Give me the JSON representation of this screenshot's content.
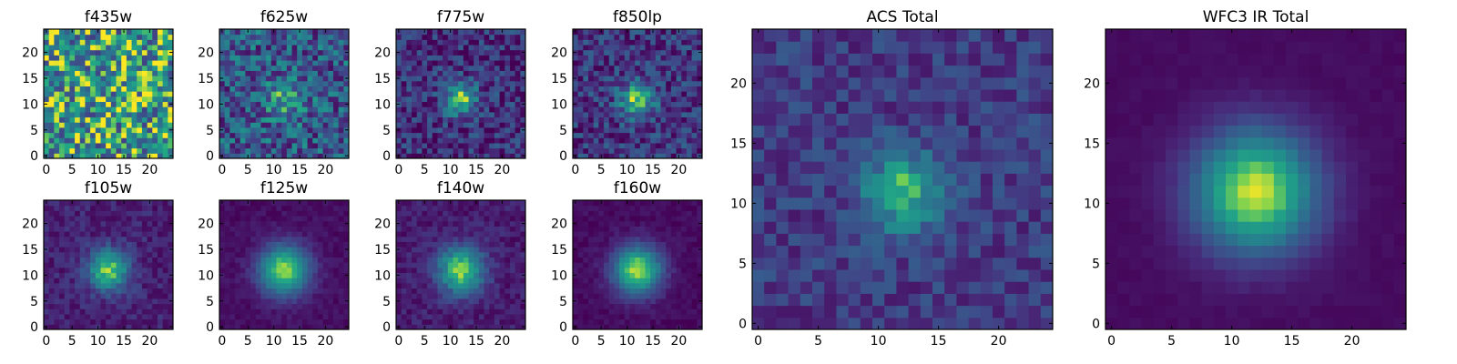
{
  "chart_data": [
    {
      "type": "heatmap",
      "title": "f435w",
      "grid_size": 25,
      "source": 0,
      "peak": [
        12,
        11
      ],
      "width": 3.0,
      "noise": 0.42,
      "floor": 0.55,
      "seed": 11,
      "xticks": [
        "0",
        "5",
        "10",
        "15",
        "20"
      ],
      "yticks": [
        "0",
        "5",
        "10",
        "15",
        "20"
      ],
      "xlim": [
        -0.5,
        24.5
      ],
      "ylim": [
        -0.5,
        24.5
      ],
      "colormap": "viridis"
    },
    {
      "type": "heatmap",
      "title": "f625w",
      "grid_size": 25,
      "source": 0.55,
      "peak": [
        12,
        11
      ],
      "width": 2.6,
      "noise": 0.3,
      "floor": 0.35,
      "seed": 23,
      "xticks": [
        "0",
        "5",
        "10",
        "15",
        "20"
      ],
      "yticks": [
        "0",
        "5",
        "10",
        "15",
        "20"
      ],
      "xlim": [
        -0.5,
        24.5
      ],
      "ylim": [
        -0.5,
        24.5
      ],
      "colormap": "viridis"
    },
    {
      "type": "heatmap",
      "title": "f775w",
      "grid_size": 25,
      "source": 0.8,
      "peak": [
        12,
        11
      ],
      "width": 2.2,
      "noise": 0.22,
      "floor": 0.18,
      "seed": 37,
      "xticks": [
        "0",
        "5",
        "10",
        "15",
        "20"
      ],
      "yticks": [
        "0",
        "5",
        "10",
        "15",
        "20"
      ],
      "xlim": [
        -0.5,
        24.5
      ],
      "ylim": [
        -0.5,
        24.5
      ],
      "colormap": "viridis"
    },
    {
      "type": "heatmap",
      "title": "f850lp",
      "grid_size": 25,
      "source": 0.78,
      "peak": [
        12,
        11
      ],
      "width": 2.4,
      "noise": 0.22,
      "floor": 0.2,
      "seed": 41,
      "xticks": [
        "0",
        "5",
        "10",
        "15",
        "20"
      ],
      "yticks": [
        "0",
        "5",
        "10",
        "15",
        "20"
      ],
      "xlim": [
        -0.5,
        24.5
      ],
      "ylim": [
        -0.5,
        24.5
      ],
      "colormap": "viridis"
    },
    {
      "type": "heatmap",
      "title": "f105w",
      "grid_size": 25,
      "source": 0.85,
      "peak": [
        12,
        11
      ],
      "width": 2.8,
      "noise": 0.1,
      "floor": 0.12,
      "seed": 53,
      "xticks": [
        "0",
        "5",
        "10",
        "15",
        "20"
      ],
      "yticks": [
        "0",
        "5",
        "10",
        "15",
        "20"
      ],
      "xlim": [
        -0.5,
        24.5
      ],
      "ylim": [
        -0.5,
        24.5
      ],
      "colormap": "viridis"
    },
    {
      "type": "heatmap",
      "title": "f125w",
      "grid_size": 25,
      "source": 0.92,
      "peak": [
        12,
        11
      ],
      "width": 3.4,
      "noise": 0.05,
      "floor": 0.05,
      "seed": 61,
      "xticks": [
        "0",
        "5",
        "10",
        "15",
        "20"
      ],
      "yticks": [
        "0",
        "5",
        "10",
        "15",
        "20"
      ],
      "xlim": [
        -0.5,
        24.5
      ],
      "ylim": [
        -0.5,
        24.5
      ],
      "colormap": "viridis"
    },
    {
      "type": "heatmap",
      "title": "f140w",
      "grid_size": 25,
      "source": 0.88,
      "peak": [
        12,
        11
      ],
      "width": 3.2,
      "noise": 0.09,
      "floor": 0.1,
      "seed": 71,
      "xticks": [
        "0",
        "5",
        "10",
        "15",
        "20"
      ],
      "yticks": [
        "0",
        "5",
        "10",
        "15",
        "20"
      ],
      "xlim": [
        -0.5,
        24.5
      ],
      "ylim": [
        -0.5,
        24.5
      ],
      "colormap": "viridis"
    },
    {
      "type": "heatmap",
      "title": "f160w",
      "grid_size": 25,
      "source": 0.95,
      "peak": [
        12,
        11
      ],
      "width": 3.3,
      "noise": 0.05,
      "floor": 0.04,
      "seed": 83,
      "xticks": [
        "0",
        "5",
        "10",
        "15",
        "20"
      ],
      "yticks": [
        "0",
        "5",
        "10",
        "15",
        "20"
      ],
      "xlim": [
        -0.5,
        24.5
      ],
      "ylim": [
        -0.5,
        24.5
      ],
      "colormap": "viridis"
    },
    {
      "type": "heatmap",
      "title": "ACS Total",
      "grid_size": 25,
      "source": 0.75,
      "peak": [
        12,
        11
      ],
      "width": 2.3,
      "noise": 0.14,
      "floor": 0.22,
      "seed": 97,
      "xticks": [
        "0",
        "5",
        "10",
        "15",
        "20"
      ],
      "yticks": [
        "0",
        "5",
        "10",
        "15",
        "20"
      ],
      "xlim": [
        -0.5,
        24.5
      ],
      "ylim": [
        -0.5,
        24.5
      ],
      "colormap": "viridis"
    },
    {
      "type": "heatmap",
      "title": "WFC3 IR Total",
      "grid_size": 25,
      "source": 0.97,
      "peak": [
        12,
        11
      ],
      "width": 3.6,
      "noise": 0.02,
      "floor": 0.04,
      "seed": 101,
      "xticks": [
        "0",
        "5",
        "10",
        "15",
        "20"
      ],
      "yticks": [
        "0",
        "5",
        "10",
        "15",
        "20"
      ],
      "xlim": [
        -0.5,
        24.5
      ],
      "ylim": [
        -0.5,
        24.5
      ],
      "colormap": "viridis"
    }
  ]
}
